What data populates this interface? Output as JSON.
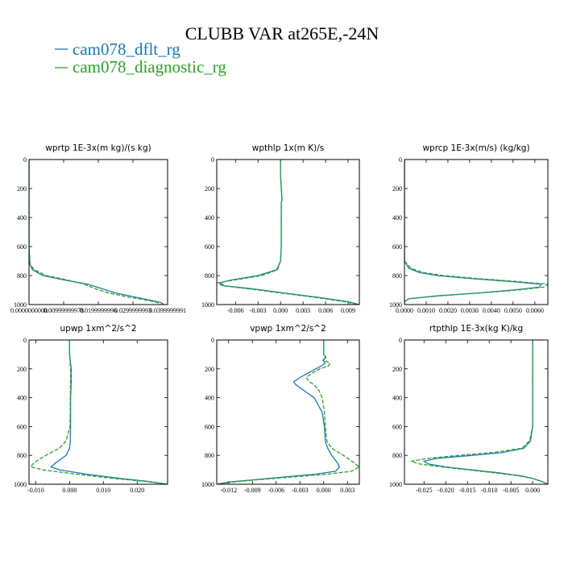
{
  "title": "CLUBB VAR at265E,-24N",
  "legend": [
    {
      "label": "cam078_dflt_rg",
      "color": "#1f77b4"
    },
    {
      "label": "cam078_diagnostic_rg",
      "color": "#2ca02c"
    }
  ],
  "chart_data": [
    {
      "type": "line",
      "title": "wprtp  1E-3x(m kg)/(s kg)",
      "xlim": [
        0,
        0.04
      ],
      "ylim": [
        1000,
        0
      ],
      "xticks": [
        0,
        0.01,
        0.02,
        0.03,
        0.04
      ],
      "xtick_labels": [
        "0.0000000000",
        "0.00999999978",
        "0.0199999996",
        "0.0299999993",
        "0.0399999991"
      ],
      "yticks": [
        0,
        200,
        400,
        600,
        800,
        1000
      ],
      "series": [
        {
          "name": "cam078_dflt_rg",
          "y": [
            0,
            200,
            400,
            600,
            720,
            760,
            800,
            830,
            860,
            890,
            920,
            950,
            970,
            985,
            1000
          ],
          "x": [
            0,
            0,
            0,
            0,
            0.0002,
            0.001,
            0.004,
            0.01,
            0.017,
            0.021,
            0.025,
            0.031,
            0.035,
            0.038,
            0.039
          ]
        },
        {
          "name": "cam078_diagnostic_rg",
          "y": [
            0,
            200,
            400,
            600,
            720,
            760,
            800,
            830,
            860,
            890,
            920,
            950,
            970,
            985,
            1000
          ],
          "x": [
            0,
            0,
            0,
            0,
            0.0003,
            0.0015,
            0.005,
            0.011,
            0.016,
            0.019,
            0.023,
            0.029,
            0.034,
            0.037,
            0.038
          ]
        }
      ]
    },
    {
      "type": "line",
      "title": "wpthlp  1x(m K)/s",
      "xlim": [
        -0.0085,
        0.0105
      ],
      "ylim": [
        1000,
        0
      ],
      "xticks": [
        -0.006,
        -0.003,
        0,
        0.003,
        0.006,
        0.009
      ],
      "xtick_labels": [
        "-0.006",
        "-0.003",
        "0.000",
        "0.003",
        "0.006",
        "0.009"
      ],
      "yticks": [
        0,
        200,
        400,
        600,
        800,
        1000
      ],
      "series": [
        {
          "name": "cam078_dflt_rg",
          "y": [
            0,
            100,
            200,
            280,
            300,
            400,
            500,
            600,
            700,
            760,
            800,
            830,
            850,
            870,
            890,
            920,
            950,
            980,
            1000
          ],
          "x": [
            0,
            0,
            0.0001,
            0.0002,
            0.0001,
            0.0001,
            0.0001,
            0.0001,
            0,
            -0.0005,
            -0.003,
            -0.0065,
            -0.0081,
            -0.0075,
            -0.004,
            0.0005,
            0.005,
            0.009,
            0.0105
          ]
        },
        {
          "name": "cam078_diagnostic_rg",
          "y": [
            0,
            100,
            200,
            280,
            300,
            400,
            500,
            600,
            700,
            760,
            800,
            830,
            850,
            870,
            890,
            920,
            950,
            980,
            1000
          ],
          "x": [
            0,
            0,
            0.0001,
            0.0002,
            0.0001,
            0.0001,
            0.0001,
            0.0001,
            0,
            -0.0004,
            -0.0025,
            -0.006,
            -0.0084,
            -0.0078,
            -0.0045,
            0,
            0.0045,
            0.0085,
            0.0103
          ]
        }
      ]
    },
    {
      "type": "line",
      "title": "wprcp  1E-3x(m/s) (kg/kg)",
      "xlim": [
        0,
        0.0066
      ],
      "ylim": [
        1000,
        0
      ],
      "xticks": [
        0,
        0.001,
        0.002,
        0.003,
        0.004,
        0.005,
        0.006
      ],
      "xtick_labels": [
        "0.0000",
        "0.0010",
        "0.0020",
        "0.0030",
        "0.0040",
        "0.0050",
        "0.0060"
      ],
      "yticks": [
        0,
        200,
        400,
        600,
        800,
        1000
      ],
      "series": [
        {
          "name": "cam078_dflt_rg",
          "y": [
            0,
            200,
            400,
            600,
            700,
            750,
            780,
            800,
            820,
            840,
            860,
            880,
            900,
            920,
            940,
            960,
            980,
            1000
          ],
          "x": [
            0,
            0,
            0,
            0,
            0,
            0.0002,
            0.0007,
            0.0015,
            0.003,
            0.0048,
            0.0063,
            0.0062,
            0.005,
            0.0034,
            0.0015,
            0.0002,
            0,
            0
          ]
        },
        {
          "name": "cam078_diagnostic_rg",
          "y": [
            0,
            200,
            400,
            600,
            700,
            750,
            780,
            800,
            820,
            840,
            860,
            880,
            900,
            920,
            940,
            960,
            980,
            1000
          ],
          "x": [
            0,
            0,
            0,
            0,
            0,
            0.0003,
            0.0009,
            0.0018,
            0.0033,
            0.0051,
            0.0066,
            0.0064,
            0.0052,
            0.0035,
            0.0016,
            0.0002,
            0,
            0
          ]
        }
      ]
    },
    {
      "type": "line",
      "title": "upwp   1xm^2/s^2",
      "xlim": [
        -0.012,
        0.029
      ],
      "ylim": [
        1000,
        0
      ],
      "xticks": [
        -0.01,
        0,
        0.01,
        0.02
      ],
      "xtick_labels": [
        "-0.010",
        "0.000",
        "0.010",
        "0.020"
      ],
      "yticks": [
        0,
        200,
        400,
        600,
        800,
        1000
      ],
      "series": [
        {
          "name": "cam078_dflt_rg",
          "y": [
            0,
            100,
            200,
            300,
            400,
            500,
            600,
            700,
            750,
            800,
            850,
            880,
            900,
            930,
            960,
            980,
            1000
          ],
          "x": [
            0,
            0,
            0.0005,
            0.0005,
            0.0003,
            0.0003,
            0.0003,
            0.0002,
            0,
            -0.001,
            -0.004,
            -0.0055,
            -0.003,
            0.005,
            0.015,
            0.023,
            0.029
          ]
        },
        {
          "name": "cam078_diagnostic_rg",
          "y": [
            0,
            100,
            200,
            300,
            400,
            500,
            600,
            700,
            750,
            800,
            850,
            880,
            900,
            930,
            960,
            980,
            1000
          ],
          "x": [
            0,
            0,
            0.0003,
            0.0003,
            0.0002,
            0.0002,
            0.0001,
            -0.001,
            -0.003,
            -0.007,
            -0.0105,
            -0.0115,
            -0.008,
            0.002,
            0.013,
            0.022,
            0.029
          ]
        }
      ]
    },
    {
      "type": "line",
      "title": "vpwp   1xm^2/s^2",
      "xlim": [
        -0.0135,
        0.0045
      ],
      "ylim": [
        1000,
        0
      ],
      "xticks": [
        -0.012,
        -0.009,
        -0.006,
        -0.003,
        0,
        0.003
      ],
      "xtick_labels": [
        "-0.012",
        "-0.009",
        "-0.006",
        "-0.003",
        "0.000",
        "0.003"
      ],
      "yticks": [
        0,
        200,
        400,
        600,
        800,
        1000
      ],
      "series": [
        {
          "name": "cam078_dflt_rg",
          "y": [
            0,
            100,
            120,
            140,
            160,
            180,
            200,
            230,
            260,
            290,
            310,
            350,
            400,
            500,
            600,
            700,
            750,
            800,
            850,
            880,
            910,
            930,
            950,
            970,
            985,
            1000
          ],
          "x": [
            0,
            0,
            0.0003,
            -0.0001,
            0.0002,
            -0.0003,
            -0.001,
            -0.002,
            -0.003,
            -0.0038,
            -0.0035,
            -0.0025,
            -0.0012,
            -0.0002,
            0.0001,
            0.0002,
            0.0005,
            0.001,
            0.0017,
            0.002,
            0.0015,
            -0.001,
            -0.005,
            -0.009,
            -0.012,
            -0.0135
          ]
        },
        {
          "name": "cam078_diagnostic_rg",
          "y": [
            0,
            100,
            120,
            140,
            160,
            180,
            200,
            230,
            260,
            290,
            310,
            350,
            400,
            500,
            600,
            700,
            750,
            800,
            850,
            880,
            910,
            930,
            950,
            970,
            985,
            1000
          ],
          "x": [
            0,
            0,
            0.0002,
            0,
            0.0008,
            0.0006,
            -0.0005,
            -0.0015,
            -0.0022,
            -0.0018,
            -0.0012,
            -0.0006,
            -0.0002,
            0.0001,
            0.0002,
            0.0004,
            0.001,
            0.0025,
            0.0038,
            0.0045,
            0.0035,
            0.0005,
            -0.004,
            -0.0085,
            -0.0115,
            -0.013
          ]
        }
      ]
    },
    {
      "type": "line",
      "title": "rtpthlp  1E-3x(kg K)/kg",
      "xlim": [
        -0.0295,
        0.0035
      ],
      "ylim": [
        1000,
        0
      ],
      "xticks": [
        -0.025,
        -0.02,
        -0.015,
        -0.01,
        -0.005,
        0
      ],
      "xtick_labels": [
        "-0.025",
        "-0.020",
        "-0.015",
        "-0.010",
        "-0.005",
        "0.000"
      ],
      "yticks": [
        0,
        200,
        400,
        600,
        800,
        1000
      ],
      "series": [
        {
          "name": "cam078_dflt_rg",
          "y": [
            0,
            200,
            400,
            600,
            700,
            750,
            780,
            800,
            820,
            840,
            860,
            880,
            900,
            920,
            940,
            960,
            980,
            1000
          ],
          "x": [
            0,
            0,
            0,
            0,
            -0.0005,
            -0.002,
            -0.007,
            -0.014,
            -0.022,
            -0.025,
            -0.024,
            -0.02,
            -0.014,
            -0.008,
            -0.003,
            0,
            0.002,
            0.0035
          ]
        },
        {
          "name": "cam078_diagnostic_rg",
          "y": [
            0,
            200,
            400,
            600,
            700,
            750,
            780,
            800,
            820,
            840,
            860,
            880,
            900,
            920,
            940,
            960,
            980,
            1000
          ],
          "x": [
            0,
            0,
            0,
            0,
            -0.0007,
            -0.0025,
            -0.009,
            -0.017,
            -0.024,
            -0.028,
            -0.026,
            -0.021,
            -0.015,
            -0.009,
            -0.0035,
            0,
            0.002,
            0.0035
          ]
        }
      ]
    }
  ]
}
